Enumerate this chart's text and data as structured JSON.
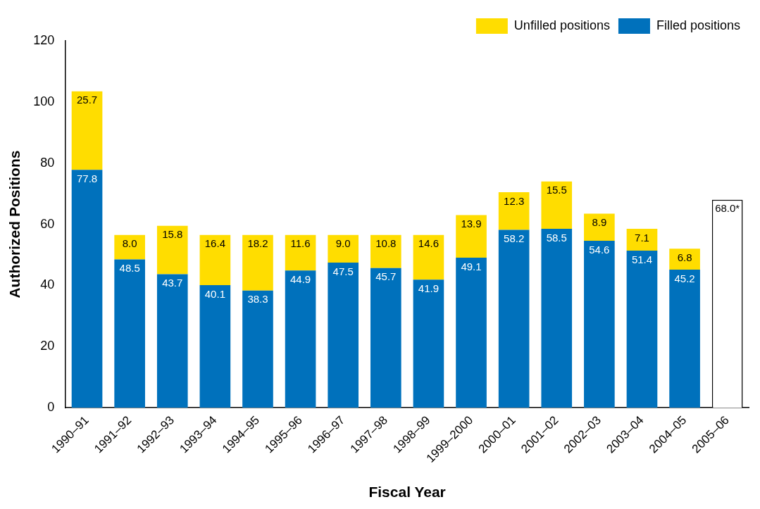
{
  "chart_data": {
    "type": "bar",
    "stacked": true,
    "xlabel": "Fiscal Year",
    "ylabel": "Authorized Positions",
    "categories": [
      "1990–91",
      "1991–92",
      "1992–93",
      "1993–94",
      "1994–95",
      "1995–96",
      "1996–97",
      "1997–98",
      "1998–99",
      "1999–2000",
      "2000–01",
      "2001–02",
      "2002–03",
      "2003–04",
      "2004–05",
      "2005–06"
    ],
    "series": [
      {
        "name": "Filled positions",
        "color": "#0071bc",
        "values": [
          77.8,
          48.5,
          43.7,
          40.1,
          38.3,
          44.9,
          47.5,
          45.7,
          41.9,
          49.1,
          58.2,
          58.5,
          54.6,
          51.4,
          45.2,
          null
        ],
        "value_labels": [
          "77.8",
          "48.5",
          "43.7",
          "40.1",
          "38.3",
          "44.9",
          "47.5",
          "45.7",
          "41.9",
          "49.1",
          "58.2",
          "58.5",
          "54.6",
          "51.4",
          "45.2",
          null
        ]
      },
      {
        "name": "Unfilled positions",
        "color": "#ffdd00",
        "values": [
          25.7,
          8.0,
          15.8,
          16.4,
          18.2,
          11.6,
          9.0,
          10.8,
          14.6,
          13.9,
          12.3,
          15.5,
          8.9,
          7.1,
          6.8,
          null
        ],
        "value_labels": [
          "25.7",
          "8.0",
          "15.8",
          "16.4",
          "18.2",
          "11.6",
          "9.0",
          "10.8",
          "14.6",
          "13.9",
          "12.3",
          "15.5",
          "8.9",
          "7.1",
          "6.8",
          null
        ]
      },
      {
        "color": "#ffffff",
        "values": [
          null,
          null,
          null,
          null,
          null,
          null,
          null,
          null,
          null,
          null,
          null,
          null,
          null,
          null,
          null,
          68.0
        ],
        "value_labels": [
          null,
          null,
          null,
          null,
          null,
          null,
          null,
          null,
          null,
          null,
          null,
          null,
          null,
          null,
          null,
          "68.0*"
        ]
      }
    ],
    "ylim": [
      0,
      120
    ],
    "yticks": [
      0,
      20,
      40,
      60,
      80,
      100,
      120
    ],
    "grid": false,
    "legend": "top right"
  }
}
